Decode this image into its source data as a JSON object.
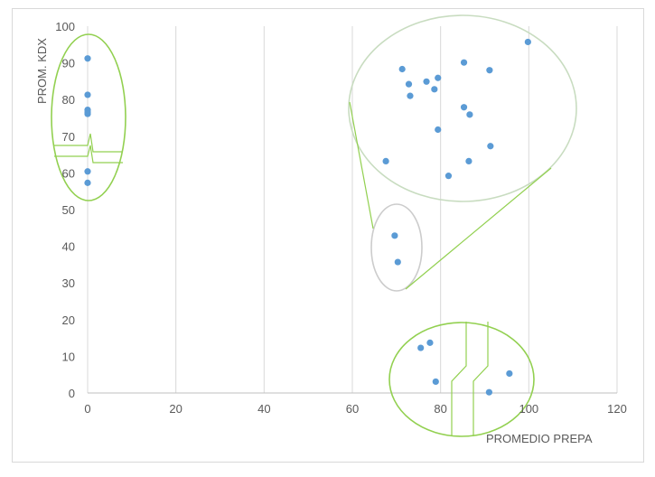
{
  "chart_data": {
    "type": "scatter",
    "title": "",
    "xlabel": "PROMEDIO PREPA",
    "ylabel": "PROM. KDX",
    "xlim": [
      0,
      120
    ],
    "ylim": [
      0,
      100
    ],
    "xticks": [
      0,
      20,
      40,
      60,
      80,
      100,
      120
    ],
    "yticks": [
      0,
      10,
      20,
      30,
      40,
      50,
      60,
      70,
      80,
      90,
      100
    ],
    "grid": "vertical",
    "legend": "none",
    "series": [
      {
        "color": "#5b9bd5",
        "points": [
          [
            0,
            91.2
          ],
          [
            0,
            81.3
          ],
          [
            0,
            77.2
          ],
          [
            0,
            76.6
          ],
          [
            0,
            76.1
          ],
          [
            0,
            60.4
          ],
          [
            0,
            57.3
          ],
          [
            71.3,
            88.3
          ],
          [
            72.8,
            84.2
          ],
          [
            73.1,
            81.0
          ],
          [
            76.8,
            84.9
          ],
          [
            78.6,
            82.8
          ],
          [
            79.4,
            85.9
          ],
          [
            85.3,
            90.1
          ],
          [
            91.1,
            88.0
          ],
          [
            99.8,
            95.7
          ],
          [
            85.3,
            77.9
          ],
          [
            86.6,
            75.9
          ],
          [
            79.4,
            71.8
          ],
          [
            67.6,
            63.2
          ],
          [
            81.8,
            59.2
          ],
          [
            86.4,
            63.2
          ],
          [
            91.3,
            67.3
          ],
          [
            69.6,
            42.9
          ],
          [
            70.3,
            35.7
          ],
          [
            75.5,
            12.3
          ],
          [
            77.6,
            13.7
          ],
          [
            78.9,
            3.1
          ],
          [
            91.0,
            0.2
          ],
          [
            95.6,
            5.3
          ]
        ]
      }
    ],
    "annotation_color": "#92d050"
  }
}
